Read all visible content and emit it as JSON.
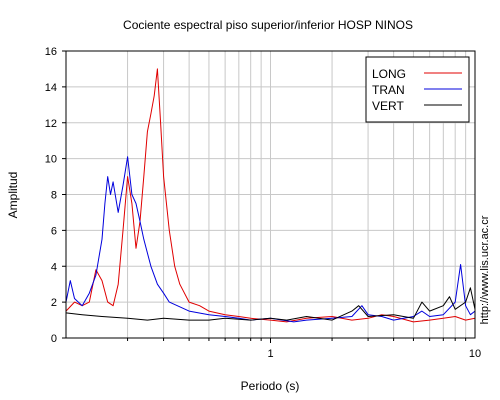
{
  "chart_data": {
    "type": "line",
    "title": "Cociente espectral piso superior/inferior  HOSP NINOS",
    "xlabel": "Periodo (s)",
    "ylabel": "Amplitud",
    "x_scale": "log",
    "xlim": [
      0.1,
      10
    ],
    "ylim": [
      0,
      16
    ],
    "x_ticks": [
      {
        "value": 1,
        "label": "1"
      },
      {
        "value": 10,
        "label": "10"
      }
    ],
    "y_ticks": [
      0,
      2,
      4,
      6,
      8,
      10,
      12,
      14,
      16
    ],
    "grid": true,
    "legend_position": "top-right",
    "side_text": "http://www.lis.ucr.ac.cr",
    "series": [
      {
        "name": "LONG",
        "color": "#e00000",
        "points": [
          [
            0.1,
            1.5
          ],
          [
            0.11,
            2.0
          ],
          [
            0.12,
            1.8
          ],
          [
            0.13,
            2.0
          ],
          [
            0.14,
            3.8
          ],
          [
            0.15,
            3.2
          ],
          [
            0.16,
            2.0
          ],
          [
            0.17,
            1.8
          ],
          [
            0.18,
            3.0
          ],
          [
            0.19,
            6.0
          ],
          [
            0.2,
            9.0
          ],
          [
            0.21,
            7.5
          ],
          [
            0.22,
            5.0
          ],
          [
            0.23,
            6.5
          ],
          [
            0.24,
            9.0
          ],
          [
            0.25,
            11.5
          ],
          [
            0.26,
            12.5
          ],
          [
            0.27,
            13.5
          ],
          [
            0.28,
            15.0
          ],
          [
            0.29,
            12.0
          ],
          [
            0.3,
            9.0
          ],
          [
            0.32,
            6.0
          ],
          [
            0.34,
            4.0
          ],
          [
            0.36,
            3.0
          ],
          [
            0.4,
            2.0
          ],
          [
            0.45,
            1.8
          ],
          [
            0.5,
            1.5
          ],
          [
            0.6,
            1.3
          ],
          [
            0.7,
            1.2
          ],
          [
            0.8,
            1.1
          ],
          [
            1.0,
            1.0
          ],
          [
            1.2,
            0.9
          ],
          [
            1.5,
            1.1
          ],
          [
            2.0,
            1.2
          ],
          [
            2.5,
            1.0
          ],
          [
            3.0,
            1.1
          ],
          [
            3.5,
            1.3
          ],
          [
            4.0,
            1.2
          ],
          [
            5.0,
            0.9
          ],
          [
            6.0,
            1.0
          ],
          [
            7.0,
            1.1
          ],
          [
            8.0,
            1.2
          ],
          [
            9.0,
            1.0
          ],
          [
            10.0,
            1.1
          ]
        ]
      },
      {
        "name": "TRAN",
        "color": "#0000dd",
        "points": [
          [
            0.1,
            2.0
          ],
          [
            0.105,
            3.2
          ],
          [
            0.11,
            2.2
          ],
          [
            0.12,
            1.8
          ],
          [
            0.13,
            2.5
          ],
          [
            0.14,
            3.5
          ],
          [
            0.15,
            5.5
          ],
          [
            0.155,
            7.5
          ],
          [
            0.16,
            9.0
          ],
          [
            0.165,
            8.0
          ],
          [
            0.17,
            8.7
          ],
          [
            0.18,
            7.0
          ],
          [
            0.19,
            8.5
          ],
          [
            0.2,
            10.1
          ],
          [
            0.21,
            8.0
          ],
          [
            0.22,
            7.5
          ],
          [
            0.23,
            6.5
          ],
          [
            0.24,
            5.5
          ],
          [
            0.26,
            4.0
          ],
          [
            0.28,
            3.0
          ],
          [
            0.3,
            2.5
          ],
          [
            0.32,
            2.0
          ],
          [
            0.35,
            1.8
          ],
          [
            0.4,
            1.5
          ],
          [
            0.5,
            1.3
          ],
          [
            0.6,
            1.2
          ],
          [
            0.7,
            1.1
          ],
          [
            0.8,
            1.0
          ],
          [
            1.0,
            1.1
          ],
          [
            1.3,
            0.9
          ],
          [
            1.5,
            1.0
          ],
          [
            2.0,
            1.1
          ],
          [
            2.5,
            1.2
          ],
          [
            2.8,
            1.8
          ],
          [
            3.0,
            1.3
          ],
          [
            3.5,
            1.2
          ],
          [
            4.0,
            1.0
          ],
          [
            5.0,
            1.2
          ],
          [
            5.5,
            1.5
          ],
          [
            6.0,
            1.2
          ],
          [
            7.0,
            1.3
          ],
          [
            8.0,
            2.0
          ],
          [
            8.5,
            4.1
          ],
          [
            9.0,
            1.8
          ],
          [
            9.5,
            1.3
          ],
          [
            10.0,
            1.5
          ]
        ]
      },
      {
        "name": "VERT",
        "color": "#000000",
        "points": [
          [
            0.1,
            1.4
          ],
          [
            0.12,
            1.3
          ],
          [
            0.15,
            1.2
          ],
          [
            0.2,
            1.1
          ],
          [
            0.25,
            1.0
          ],
          [
            0.3,
            1.1
          ],
          [
            0.4,
            1.0
          ],
          [
            0.5,
            1.0
          ],
          [
            0.6,
            1.1
          ],
          [
            0.8,
            1.0
          ],
          [
            1.0,
            1.1
          ],
          [
            1.2,
            1.0
          ],
          [
            1.5,
            1.2
          ],
          [
            2.0,
            1.0
          ],
          [
            2.5,
            1.5
          ],
          [
            2.7,
            1.8
          ],
          [
            3.0,
            1.2
          ],
          [
            4.0,
            1.3
          ],
          [
            5.0,
            1.1
          ],
          [
            5.5,
            2.0
          ],
          [
            6.0,
            1.5
          ],
          [
            7.0,
            1.8
          ],
          [
            7.5,
            2.3
          ],
          [
            8.0,
            1.6
          ],
          [
            9.0,
            2.0
          ],
          [
            9.5,
            2.8
          ],
          [
            10.0,
            1.6
          ]
        ]
      }
    ]
  }
}
